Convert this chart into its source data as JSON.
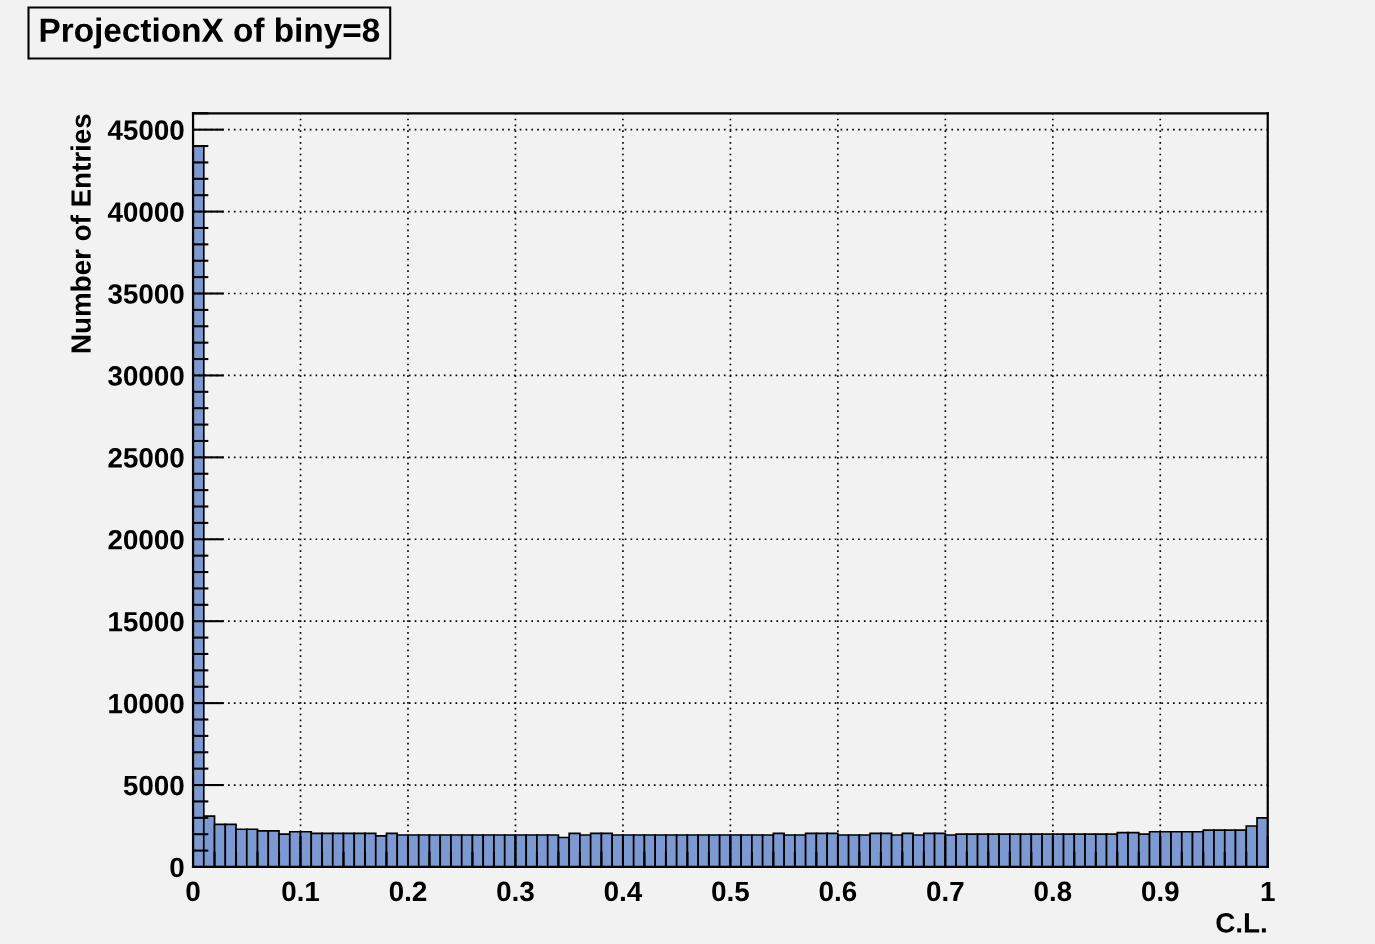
{
  "chart_data": {
    "type": "histogram",
    "title": "ProjectionX of biny=8",
    "xlabel": "C.L.",
    "ylabel": "Number of Entries",
    "bins": [
      0,
      0.01,
      0.02,
      0.03,
      0.04,
      0.05,
      0.06,
      0.07,
      0.08,
      0.09,
      0.1,
      0.11,
      0.12,
      0.13,
      0.14,
      0.15,
      0.16,
      0.17,
      0.18,
      0.19,
      0.2,
      0.21,
      0.22,
      0.23,
      0.24,
      0.25,
      0.26,
      0.27,
      0.28,
      0.29,
      0.3,
      0.31,
      0.32,
      0.33,
      0.34,
      0.35,
      0.36,
      0.37,
      0.38,
      0.39,
      0.4,
      0.41,
      0.42,
      0.43,
      0.44,
      0.45,
      0.46,
      0.47,
      0.48,
      0.49,
      0.5,
      0.51,
      0.52,
      0.53,
      0.54,
      0.55,
      0.56,
      0.57,
      0.58,
      0.59,
      0.6,
      0.61,
      0.62,
      0.63,
      0.64,
      0.65,
      0.66,
      0.67,
      0.68,
      0.69,
      0.7,
      0.71,
      0.72,
      0.73,
      0.74,
      0.75,
      0.76,
      0.77,
      0.78,
      0.79,
      0.8,
      0.81,
      0.82,
      0.83,
      0.84,
      0.85,
      0.86,
      0.87,
      0.88,
      0.89,
      0.9,
      0.91,
      0.92,
      0.93,
      0.94,
      0.95,
      0.96,
      0.97,
      0.98,
      0.99,
      1
    ],
    "values": [
      44000,
      3100,
      2600,
      2600,
      2300,
      2300,
      2200,
      2200,
      2000,
      2150,
      2150,
      2050,
      2050,
      2050,
      2050,
      2050,
      2050,
      1900,
      2050,
      1950,
      1950,
      1950,
      1950,
      1950,
      1950,
      1950,
      1950,
      1950,
      1950,
      1950,
      1950,
      1950,
      1950,
      1950,
      1800,
      2050,
      1950,
      2050,
      2050,
      1950,
      1950,
      1950,
      1950,
      1950,
      1950,
      1950,
      1950,
      1950,
      1950,
      1950,
      1950,
      1950,
      1950,
      1950,
      2050,
      1950,
      1950,
      2050,
      2050,
      2050,
      1950,
      1950,
      1950,
      2050,
      2050,
      1950,
      2050,
      1950,
      2050,
      2050,
      1950,
      2000,
      2000,
      2000,
      2000,
      2000,
      2000,
      2000,
      2000,
      2000,
      2000,
      2000,
      2000,
      2000,
      2000,
      2000,
      2100,
      2100,
      2000,
      2150,
      2150,
      2150,
      2150,
      2150,
      2250,
      2250,
      2250,
      2250,
      2500,
      3000
    ],
    "color": "#7d99d1",
    "xlim": [
      0,
      1
    ],
    "ylim": [
      0,
      46000
    ],
    "xticks": [
      0,
      0.1,
      0.2,
      0.3,
      0.4,
      0.5,
      0.6,
      0.7,
      0.8,
      0.9,
      1
    ],
    "yticks": [
      0,
      5000,
      10000,
      15000,
      20000,
      25000,
      30000,
      35000,
      40000,
      45000
    ],
    "grid": true
  }
}
